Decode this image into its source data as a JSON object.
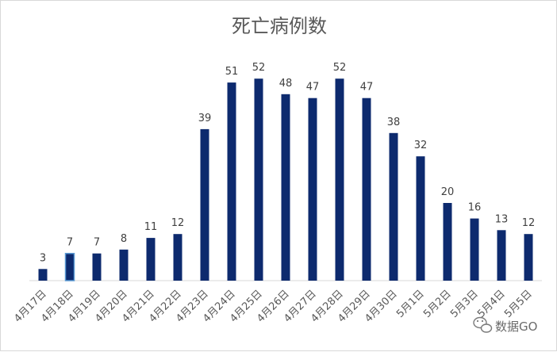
{
  "chart_data": {
    "type": "bar",
    "title": "死亡病例数",
    "xlabel": "",
    "ylabel": "",
    "ylim": [
      0,
      60
    ],
    "grid": false,
    "legend": "none",
    "categories": [
      "4月17日",
      "4月18日",
      "4月19日",
      "4月20日",
      "4月21日",
      "4月22日",
      "4月23日",
      "4月24日",
      "4月25日",
      "4月26日",
      "4月27日",
      "4月28日",
      "4月29日",
      "4月30日",
      "5月1日",
      "5月2日",
      "5月3日",
      "5月4日",
      "5月5日"
    ],
    "values": [
      3,
      7,
      7,
      8,
      11,
      12,
      39,
      51,
      52,
      48,
      47,
      52,
      47,
      38,
      32,
      20,
      16,
      13,
      12
    ],
    "highlight_index": 1,
    "colors": {
      "bar": "#0d2a6e",
      "highlight_fill": "#0d2a6e",
      "highlight_stroke": "#5b9bd5",
      "axis": "#d9d9d9"
    }
  },
  "watermark": {
    "icon": "wechat-icon",
    "text": "数据GO"
  }
}
